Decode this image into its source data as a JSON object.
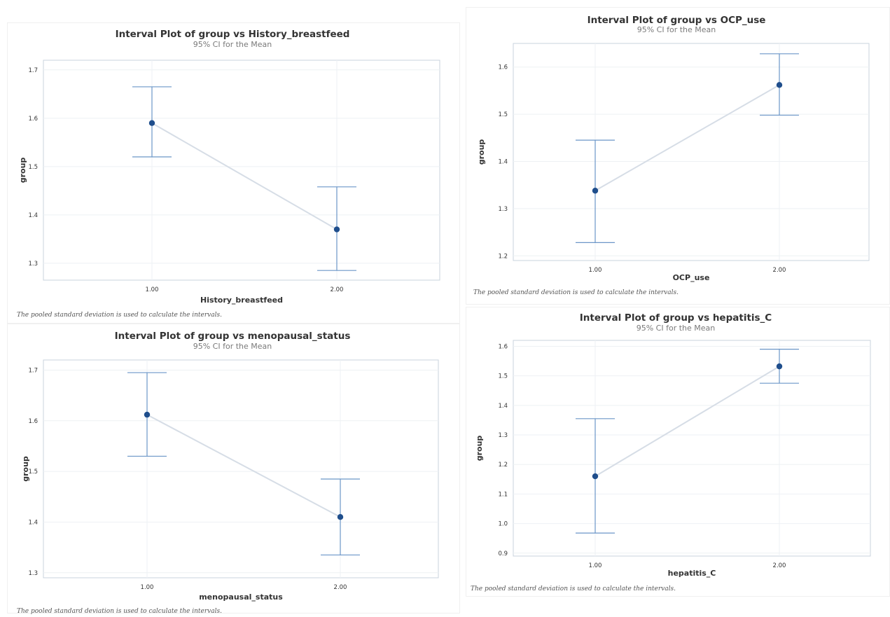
{
  "colors": {
    "point": "#1f4e8c",
    "error_bar": "#6b96c8",
    "connect_line": "#d6dde6",
    "grid": "#eef1f4",
    "frame": "#c9d3dd"
  },
  "chart_data": [
    {
      "type": "interval",
      "title": "Interval Plot of group vs History_breastfeed",
      "subtitle": "95% CI for the Mean",
      "xlabel": "History_breastfeed",
      "ylabel": "group",
      "categories": [
        "1.00",
        "2.00"
      ],
      "means": [
        1.59,
        1.37
      ],
      "lower": [
        1.52,
        1.285
      ],
      "upper": [
        1.665,
        1.458
      ],
      "ylim": [
        1.265,
        1.72
      ],
      "yticks": [
        1.3,
        1.4,
        1.5,
        1.6,
        1.7
      ],
      "ytick_labels": [
        "1.3",
        "1.4",
        "1.5",
        "1.6",
        "1.7"
      ],
      "footnote": "The pooled standard deviation is used to calculate the intervals."
    },
    {
      "type": "interval",
      "title": "Interval Plot of group vs OCP_use",
      "subtitle": "95% CI for the Mean",
      "xlabel": "OCP_use",
      "ylabel": "group",
      "categories": [
        "1.00",
        "2.00"
      ],
      "means": [
        1.338,
        1.562
      ],
      "lower": [
        1.228,
        1.498
      ],
      "upper": [
        1.445,
        1.628
      ],
      "ylim": [
        1.19,
        1.65
      ],
      "yticks": [
        1.2,
        1.3,
        1.4,
        1.5,
        1.6
      ],
      "ytick_labels": [
        "1.2",
        "1.3",
        "1.4",
        "1.5",
        "1.6"
      ],
      "footnote": "The pooled standard deviation is used to calculate the intervals."
    },
    {
      "type": "interval",
      "title": "Interval Plot of group vs menopausal_status",
      "subtitle": "95% CI for the Mean",
      "xlabel": "menopausal_status",
      "ylabel": "group",
      "categories": [
        "1.00",
        "2.00"
      ],
      "means": [
        1.612,
        1.41
      ],
      "lower": [
        1.53,
        1.335
      ],
      "upper": [
        1.695,
        1.485
      ],
      "ylim": [
        1.29,
        1.72
      ],
      "yticks": [
        1.3,
        1.4,
        1.5,
        1.6,
        1.7
      ],
      "ytick_labels": [
        "1.3",
        "1.4",
        "1.5",
        "1.6",
        "1.7"
      ],
      "footnote": "The pooled standard deviation is used to calculate the intervals."
    },
    {
      "type": "interval",
      "title": "Interval Plot of group vs hepatitis_C",
      "subtitle": "95% CI for the Mean",
      "xlabel": "hepatitis_C",
      "ylabel": "group",
      "categories": [
        "1.00",
        "2.00"
      ],
      "means": [
        1.16,
        1.532
      ],
      "lower": [
        0.968,
        1.475
      ],
      "upper": [
        1.355,
        1.59
      ],
      "ylim": [
        0.89,
        1.62
      ],
      "yticks": [
        0.9,
        1.0,
        1.1,
        1.2,
        1.3,
        1.4,
        1.5,
        1.6
      ],
      "ytick_labels": [
        "0.9",
        "1.0",
        "1.1",
        "1.2",
        "1.3",
        "1.4",
        "1.5",
        "1.6"
      ],
      "footnote": "The pooled standard deviation is used to calculate the intervals."
    }
  ]
}
